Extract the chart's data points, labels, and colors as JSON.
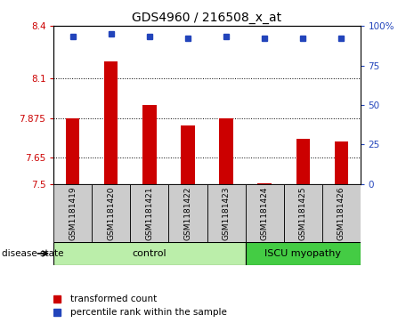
{
  "title": "GDS4960 / 216508_x_at",
  "samples": [
    "GSM1181419",
    "GSM1181420",
    "GSM1181421",
    "GSM1181422",
    "GSM1181423",
    "GSM1181424",
    "GSM1181425",
    "GSM1181426"
  ],
  "transformed_counts": [
    7.875,
    8.2,
    7.95,
    7.835,
    7.875,
    7.505,
    7.76,
    7.74
  ],
  "percentile_ranks": [
    93,
    95,
    93,
    92,
    93,
    92,
    92,
    92
  ],
  "ylim_left": [
    7.5,
    8.4
  ],
  "ylim_right": [
    0,
    100
  ],
  "yticks_left": [
    7.5,
    7.65,
    7.875,
    8.1,
    8.4
  ],
  "yticks_right": [
    0,
    25,
    50,
    75,
    100
  ],
  "ytick_labels_left": [
    "7.5",
    "7.65",
    "7.875",
    "8.1",
    "8.4"
  ],
  "ytick_labels_right": [
    "0",
    "25",
    "50",
    "75",
    "100%"
  ],
  "hlines": [
    7.65,
    7.875,
    8.1
  ],
  "bar_color": "#cc0000",
  "marker_color": "#2244bb",
  "bar_bottom": 7.5,
  "control_samples": 5,
  "control_label": "control",
  "disease_label": "ISCU myopathy",
  "disease_state_label": "disease state",
  "control_color": "#bbeeaa",
  "disease_color": "#44cc44",
  "label_box_color": "#cccccc",
  "legend_red_label": "transformed count",
  "legend_blue_label": "percentile rank within the sample",
  "title_fontsize": 10,
  "tick_fontsize": 7.5,
  "label_fontsize": 8
}
